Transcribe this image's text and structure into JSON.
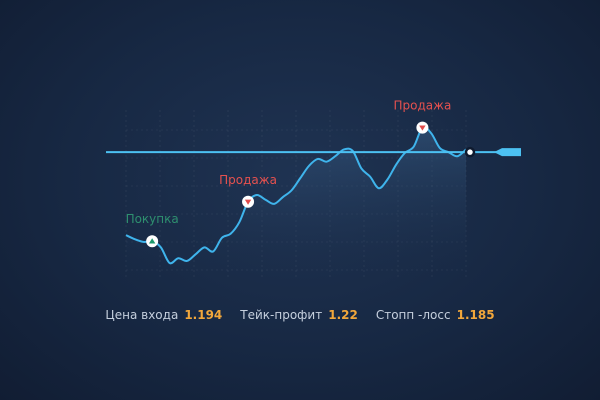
{
  "chart_data": {
    "type": "line",
    "series": [
      {
        "values": [
          0.36,
          0.3,
          0.26,
          0.27,
          0.18,
          -0.05,
          0.02,
          -0.02,
          0.08,
          0.18,
          0.12,
          0.32,
          0.38,
          0.55,
          0.85,
          0.95,
          0.88,
          0.82,
          0.92,
          1.02,
          1.2,
          1.38,
          1.48,
          1.44,
          1.52,
          1.62,
          1.6,
          1.34,
          1.22,
          1.05,
          1.18,
          1.4,
          1.57,
          1.66,
          1.94,
          1.86,
          1.64,
          1.58,
          1.52,
          1.62
        ]
      }
    ],
    "ylim": [
      -0.3,
      2.2
    ],
    "level_line": 1.58,
    "grid": true,
    "markers": [
      {
        "label": "Покупка",
        "index": 3,
        "direction": "up",
        "color": "#2e8f6f"
      },
      {
        "label": "Продажа",
        "index": 14,
        "direction": "down",
        "color": "#e5514f"
      },
      {
        "label": "Продажа",
        "index": 34,
        "direction": "down",
        "color": "#e5514f"
      }
    ],
    "colors": {
      "line": "#3fb4ec",
      "level": "#4cc1f2",
      "up_icon": "#1d9a6c",
      "down_icon": "#e14b4b"
    }
  },
  "footer": {
    "entry_label": "Цена входа",
    "entry_value": "1.194",
    "tp_label": "Тейк-профит",
    "tp_value": "1.22",
    "sl_label": "Стопп -лосс",
    "sl_value": "1.185"
  }
}
